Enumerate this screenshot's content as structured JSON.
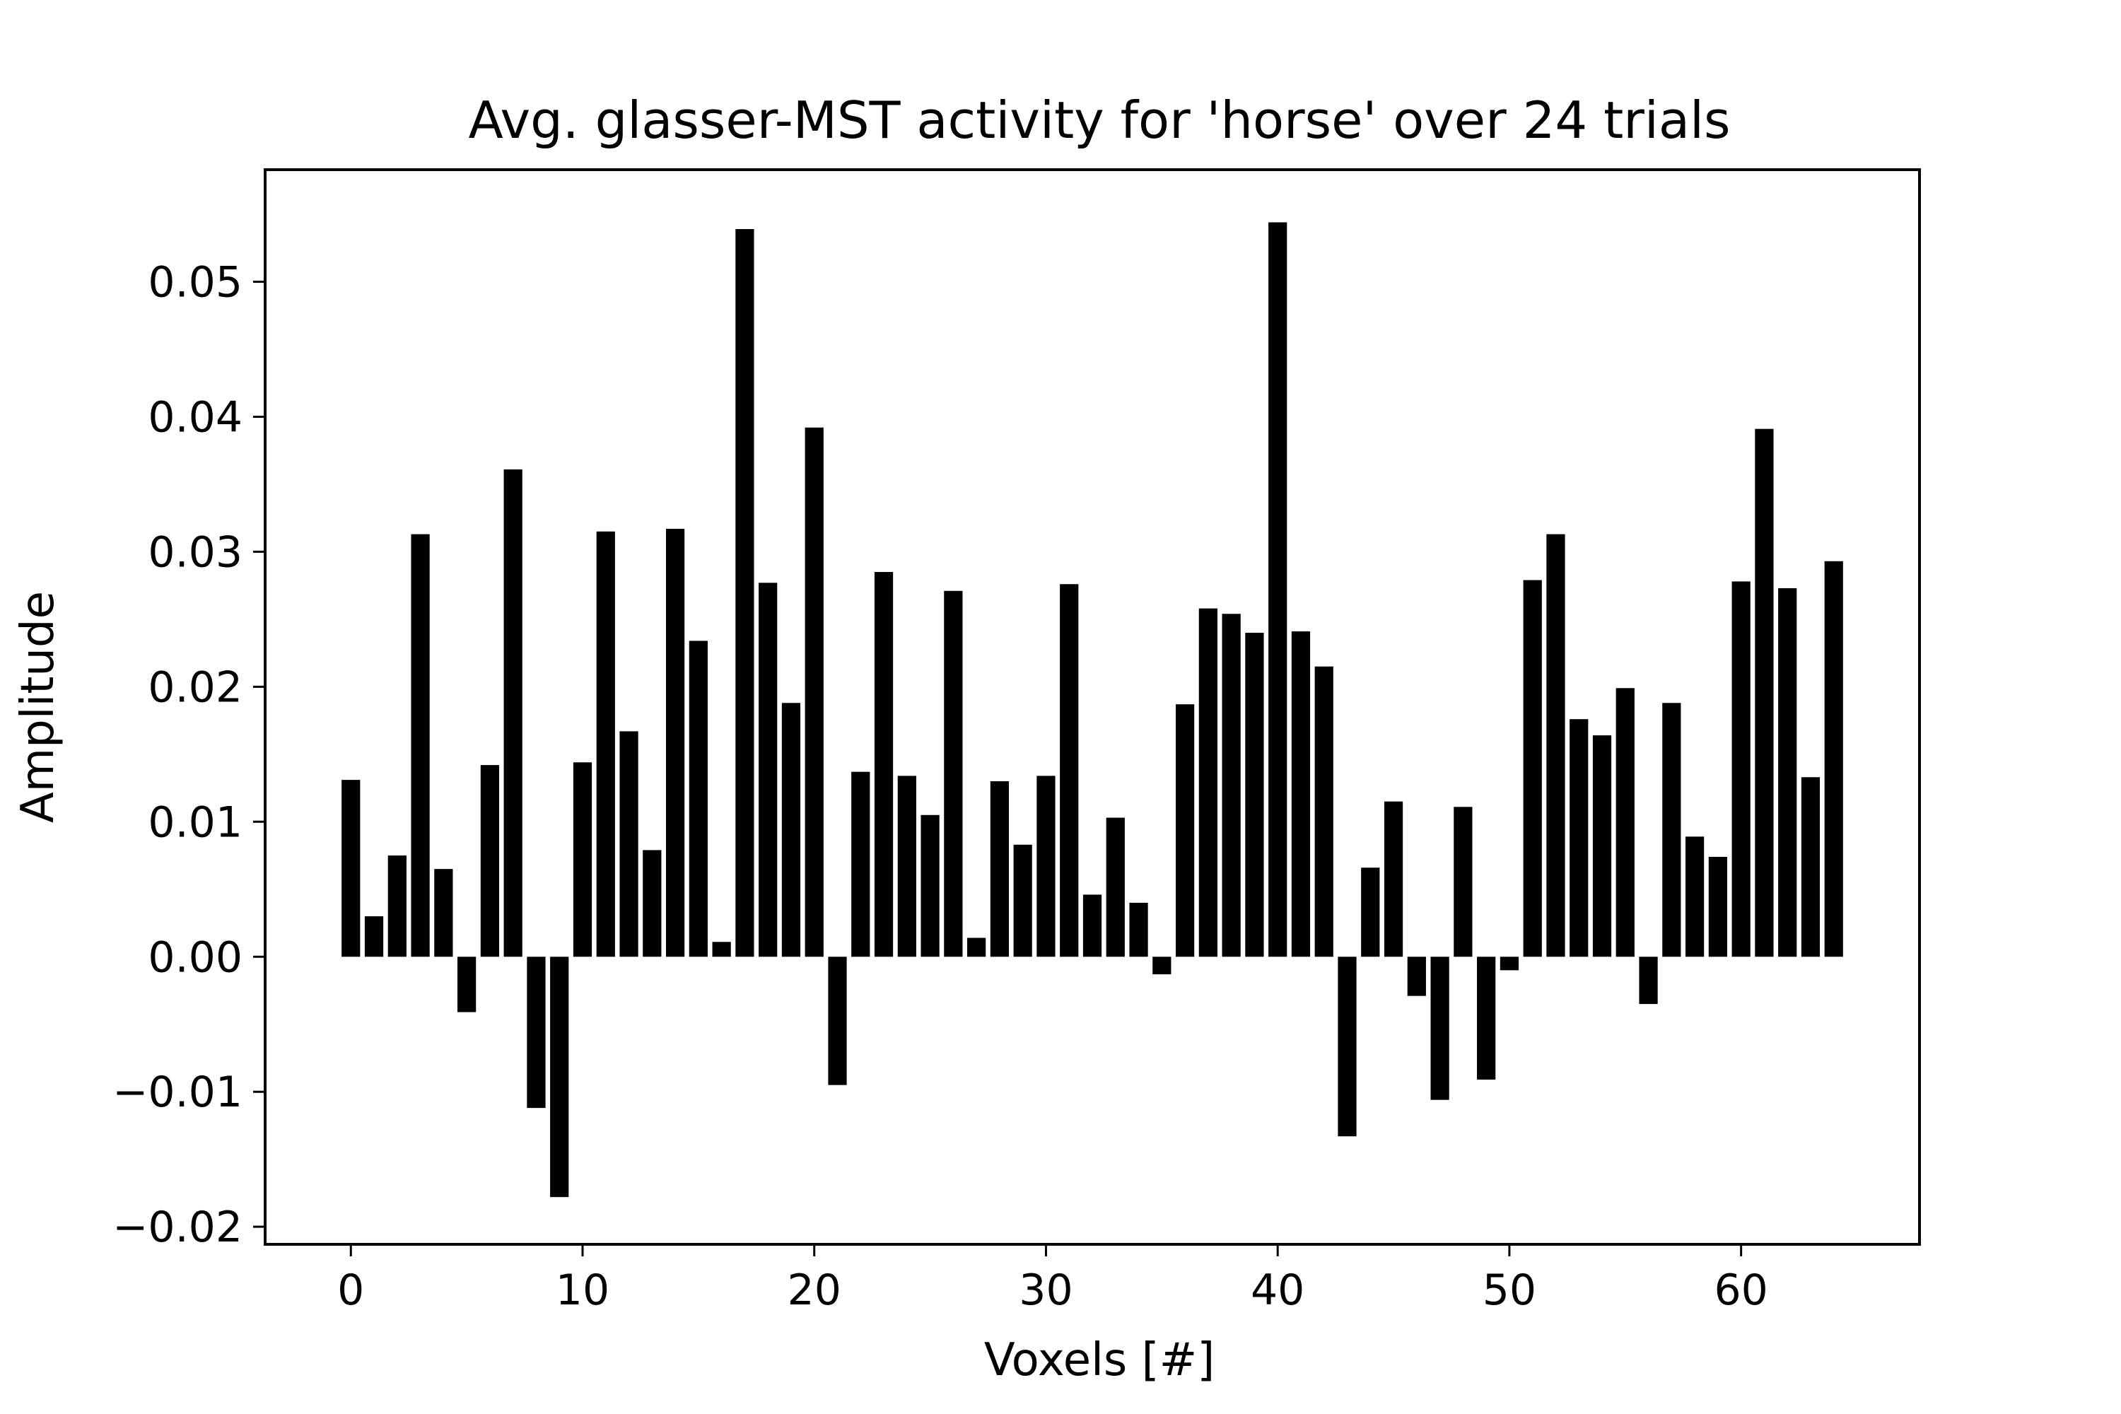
{
  "chart_data": {
    "type": "bar",
    "title": "Avg. glasser-MST activity for 'horse' over 24 trials",
    "xlabel": "Voxels [#]",
    "ylabel": "Amplitude",
    "xlim": [
      -3.7,
      67.7
    ],
    "ylim": [
      -0.0213,
      0.0583
    ],
    "xticks": [
      0,
      10,
      20,
      30,
      40,
      50,
      60
    ],
    "xtick_labels": [
      "0",
      "10",
      "20",
      "30",
      "40",
      "50",
      "60"
    ],
    "yticks": [
      -0.02,
      -0.01,
      0.0,
      0.01,
      0.02,
      0.03,
      0.04,
      0.05
    ],
    "ytick_labels": [
      "−0.02",
      "−0.01",
      "0.00",
      "0.01",
      "0.02",
      "0.03",
      "0.04",
      "0.05"
    ],
    "grid": false,
    "bar_color": "#000000",
    "x": [
      0,
      1,
      2,
      3,
      4,
      5,
      6,
      7,
      8,
      9,
      10,
      11,
      12,
      13,
      14,
      15,
      16,
      17,
      18,
      19,
      20,
      21,
      22,
      23,
      24,
      25,
      26,
      27,
      28,
      29,
      30,
      31,
      32,
      33,
      34,
      35,
      36,
      37,
      38,
      39,
      40,
      41,
      42,
      43,
      44,
      45,
      46,
      47,
      48,
      49,
      50,
      51,
      52,
      53,
      54,
      55,
      56,
      57,
      58,
      59,
      60,
      61,
      62,
      63,
      64
    ],
    "values": [
      0.0131,
      0.003,
      0.0075,
      0.0313,
      0.0065,
      -0.0041,
      0.0142,
      0.0361,
      -0.0112,
      -0.0178,
      0.0144,
      0.0315,
      0.0167,
      0.0079,
      0.0317,
      0.0234,
      0.0011,
      0.0539,
      0.0277,
      0.0188,
      0.0392,
      -0.0095,
      0.0137,
      0.0285,
      0.0134,
      0.0105,
      0.0271,
      0.0014,
      0.013,
      0.0083,
      0.0134,
      0.0276,
      0.0046,
      0.0103,
      0.004,
      -0.0013,
      0.0187,
      0.0258,
      0.0254,
      0.024,
      0.0544,
      0.0241,
      0.0215,
      -0.0133,
      0.0066,
      0.0115,
      -0.0029,
      -0.0106,
      0.0111,
      -0.0091,
      -0.001,
      0.0279,
      0.0313,
      0.0176,
      0.0164,
      0.0199,
      -0.0035,
      0.0188,
      0.0089,
      0.0074,
      0.0278,
      0.0391,
      0.0273,
      0.0133,
      0.0293
    ]
  }
}
